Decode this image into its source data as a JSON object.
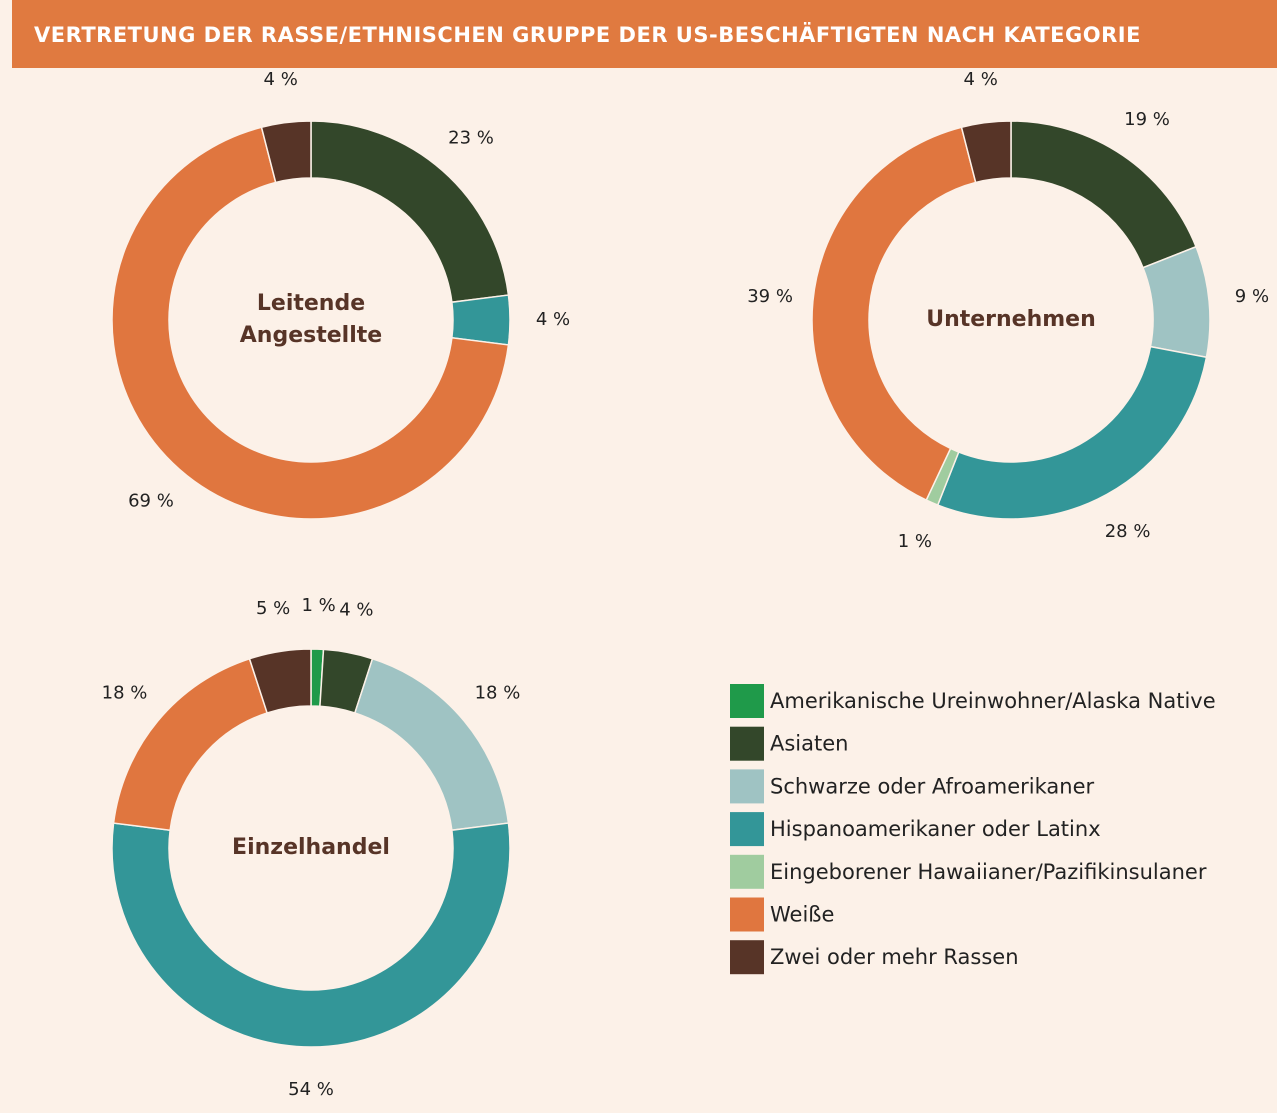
{
  "title": "VERTRETUNG DER RASSE/ETHNISCHEN GRUPPE DER US-BESCHÄFTIGTEN NACH KATEGORIE",
  "categories": [
    "Amerikanische Ureinwohner/Alaska Native",
    "Asiaten",
    "Schwarze oder Afroamerikaner",
    "Hispanoamerikaner oder Latinx",
    "Eingeborener Hawaiianer/Pazifikinsulaner",
    "Weiße",
    "Zwei oder mehr Rassen"
  ],
  "colors": [
    "#1f9a4a",
    "#33472a",
    "#9fc3c3",
    "#339698",
    "#a0cc9f",
    "#e0763f",
    "#573427"
  ],
  "chart_data": [
    {
      "type": "pie",
      "donut": true,
      "title": "Leitende Angestellte",
      "values": [
        null,
        23,
        null,
        4,
        null,
        69,
        4
      ],
      "value_labels": [
        null,
        "23 %",
        null,
        "4 %",
        null,
        "69 %",
        "4 %"
      ]
    },
    {
      "type": "pie",
      "donut": true,
      "title": "Unternehmen",
      "values": [
        null,
        19,
        9,
        28,
        1,
        39,
        4
      ],
      "value_labels": [
        null,
        "19 %",
        "9 %",
        "28 %",
        "1 %",
        "39 %",
        "4 %"
      ]
    },
    {
      "type": "pie",
      "donut": true,
      "title": "Einzelhandel",
      "values": [
        1,
        4,
        18,
        54,
        null,
        18,
        5
      ],
      "value_labels": [
        "1 %",
        "4 %",
        "18 %",
        "54 %",
        null,
        "18 %",
        "5 %"
      ]
    }
  ]
}
